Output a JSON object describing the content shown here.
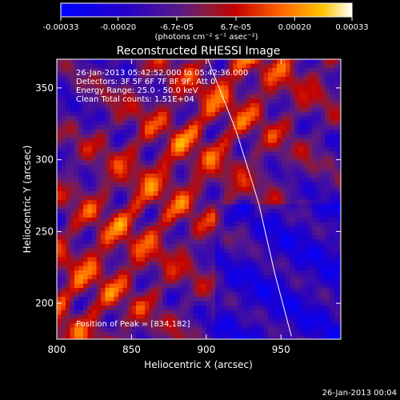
{
  "chart_data": {
    "type": "heatmap",
    "title": "Reconstructed RHESSI Image",
    "xlabel": "Heliocentric X (arcsec)",
    "ylabel": "Heliocentric Y (arcsec)",
    "xlim": [
      800,
      990
    ],
    "ylim": [
      175,
      370
    ],
    "x_ticks": [
      800,
      850,
      900,
      950
    ],
    "y_ticks": [
      200,
      250,
      300,
      350
    ],
    "colorbar": {
      "min": -0.00033,
      "max": 0.00033,
      "ticks": [
        {
          "value": -0.00033,
          "label": "-0.00033"
        },
        {
          "value": -0.0002,
          "label": "-0.00020"
        },
        {
          "value": -6.7e-05,
          "label": "-6.7e-05"
        },
        {
          "value": 6.7e-05,
          "label": "6.7e-05"
        },
        {
          "value": 0.0002,
          "label": "0.00020"
        },
        {
          "value": 0.00033,
          "label": "0.00033"
        }
      ],
      "unit_label": "(photons cm⁻² s⁻¹ asec⁻²)"
    },
    "annotations": [
      "26-Jan-2013 05:42:52.000 to 05:42:36.000",
      "Detectors: 3F 5F 6F 7F 8F 9F, Att 0",
      "Energy Range: 25.0 - 50.0 keV",
      "Clean     Total counts: 1.51E+04"
    ],
    "peak_label": "Position of Peak = [834,182]",
    "peak": [
      834,
      182
    ],
    "limb": [
      [
        901,
        370
      ],
      [
        920,
        320
      ],
      [
        935,
        270
      ],
      [
        946,
        220
      ],
      [
        957,
        177
      ]
    ]
  },
  "footer": {
    "timestamp": "26-Jan-2013 00:04"
  },
  "colors": {
    "background": "#000000",
    "text": "#ffffff",
    "limb": "#ffffff"
  }
}
